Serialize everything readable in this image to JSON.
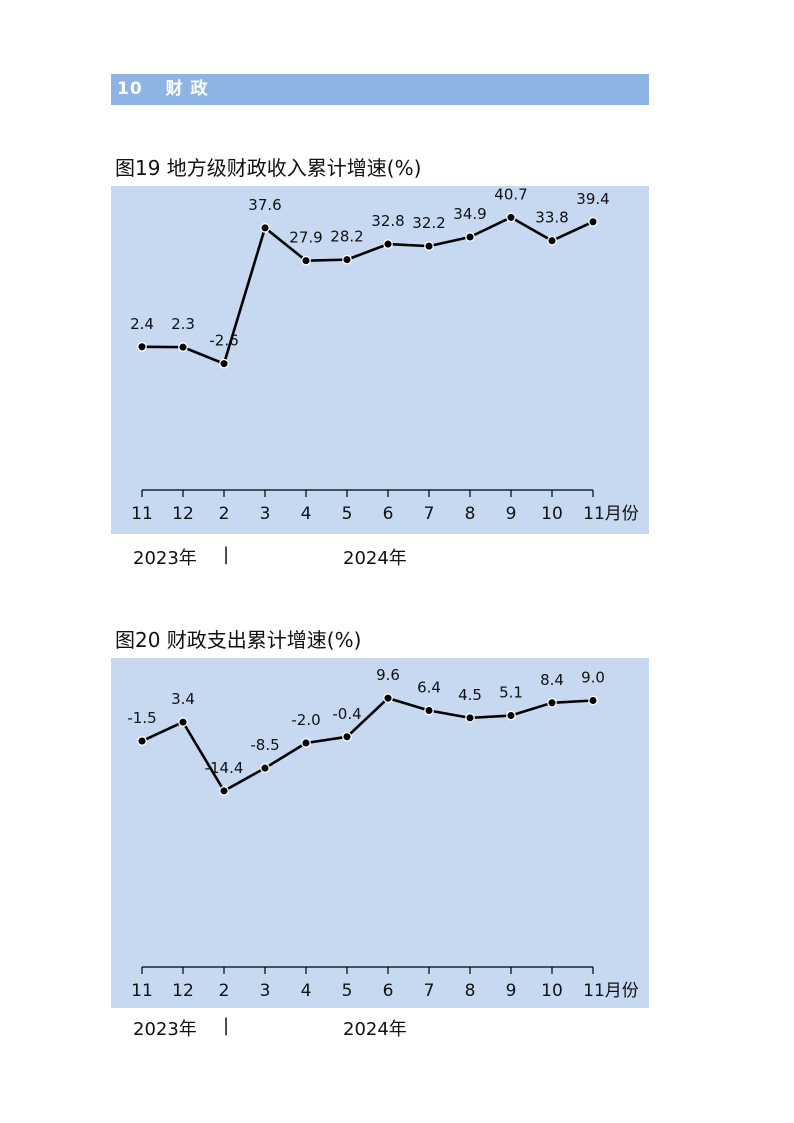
{
  "section": {
    "number": "10",
    "title": "财 政"
  },
  "figures": [
    {
      "title": "图19  地方级财政收入累计增速(%)",
      "year_left": "2023年",
      "year_sep": "|",
      "year_right": "2024年"
    },
    {
      "title": "图20  财政支出累计增速(%)",
      "year_left": "2023年",
      "year_sep": "|",
      "year_right": "2024年"
    }
  ],
  "chart_data": [
    {
      "type": "line",
      "title": "图19  地方级财政收入累计增速(%)",
      "categories": [
        "11",
        "12",
        "2",
        "3",
        "4",
        "5",
        "6",
        "7",
        "8",
        "9",
        "10",
        "11月份"
      ],
      "values": [
        2.4,
        2.3,
        -2.6,
        37.6,
        27.9,
        28.2,
        32.8,
        32.2,
        34.9,
        40.7,
        33.8,
        39.4
      ],
      "value_labels": [
        "2.4",
        "2.3",
        "-2.6",
        "37.6",
        "27.9",
        "28.2",
        "32.8",
        "32.2",
        "34.9",
        "40.7",
        "33.8",
        "39.4"
      ],
      "ylim": [
        -40,
        50
      ],
      "grid": false,
      "legend": "none"
    },
    {
      "type": "line",
      "title": "图20  财政支出累计增速(%)",
      "categories": [
        "11",
        "12",
        "2",
        "3",
        "4",
        "5",
        "6",
        "7",
        "8",
        "9",
        "10",
        "11月份"
      ],
      "values": [
        -1.5,
        3.4,
        -14.4,
        -8.5,
        -2.0,
        -0.4,
        9.6,
        6.4,
        4.5,
        5.1,
        8.4,
        9.0
      ],
      "value_labels": [
        "-1.5",
        "3.4",
        "-14.4",
        "-8.5",
        "-2.0",
        "-0.4",
        "9.6",
        "6.4",
        "4.5",
        "5.1",
        "8.4",
        "9.0"
      ],
      "ylim": [
        -60,
        20
      ],
      "grid": false,
      "legend": "none"
    }
  ],
  "colors": {
    "section_bar": "#8db4e3",
    "plot_bg": "#c6d9f1",
    "line": "#000000",
    "marker_fill": "#000000",
    "marker_stroke": "#ffffff"
  }
}
